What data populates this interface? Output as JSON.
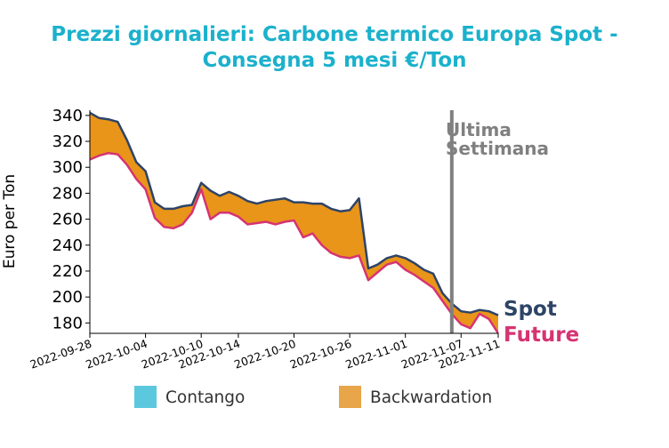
{
  "chart_data": {
    "type": "area",
    "title_line1": "Prezzi giornalieri: Carbone termico Europa Spot -",
    "title_line2": "Consegna 5 mesi €/Ton",
    "ylabel": "Euro per Ton",
    "xlabel": "",
    "ylim": [
      172,
      344
    ],
    "yticks": [
      180,
      200,
      220,
      240,
      260,
      280,
      300,
      320,
      340
    ],
    "xlim": [
      "2022-09-28",
      "2022-11-11"
    ],
    "xticks": [
      "2022-09-28",
      "2022-10-04",
      "2022-10-10",
      "2022-10-14",
      "2022-10-20",
      "2022-10-26",
      "2022-11-01",
      "2022-11-07",
      "2022-11-11"
    ],
    "grid": false,
    "vline": {
      "x": "2022-11-06",
      "label_line1": "Ultima",
      "label_line2": "Settimana",
      "color": "#808080"
    },
    "legend": [
      {
        "label": "Contango",
        "color": "#5bc8de"
      },
      {
        "label": "Backwardation",
        "color": "#e8a54a"
      }
    ],
    "series": [
      {
        "name": "Spot",
        "color": "#2e4467",
        "x": [
          "2022-09-28",
          "2022-09-29",
          "2022-09-30",
          "2022-10-01",
          "2022-10-02",
          "2022-10-03",
          "2022-10-04",
          "2022-10-05",
          "2022-10-06",
          "2022-10-07",
          "2022-10-08",
          "2022-10-09",
          "2022-10-10",
          "2022-10-11",
          "2022-10-12",
          "2022-10-13",
          "2022-10-14",
          "2022-10-15",
          "2022-10-16",
          "2022-10-17",
          "2022-10-18",
          "2022-10-19",
          "2022-10-20",
          "2022-10-21",
          "2022-10-22",
          "2022-10-23",
          "2022-10-24",
          "2022-10-25",
          "2022-10-26",
          "2022-10-27",
          "2022-10-28",
          "2022-10-29",
          "2022-10-30",
          "2022-10-31",
          "2022-11-01",
          "2022-11-02",
          "2022-11-03",
          "2022-11-04",
          "2022-11-05",
          "2022-11-06",
          "2022-11-07",
          "2022-11-08",
          "2022-11-09",
          "2022-11-10",
          "2022-11-11"
        ],
        "values": [
          342,
          338,
          337,
          335,
          321,
          304,
          297,
          273,
          268,
          268,
          270,
          271,
          288,
          282,
          278,
          281,
          278,
          274,
          272,
          274,
          275,
          276,
          273,
          273,
          272,
          272,
          268,
          266,
          267,
          276,
          222,
          225,
          230,
          232,
          230,
          226,
          221,
          218,
          203,
          195,
          189,
          188,
          190,
          189,
          186
        ]
      },
      {
        "name": "Future",
        "color": "#d63372",
        "x": [
          "2022-09-28",
          "2022-09-29",
          "2022-09-30",
          "2022-10-01",
          "2022-10-02",
          "2022-10-03",
          "2022-10-04",
          "2022-10-05",
          "2022-10-06",
          "2022-10-07",
          "2022-10-08",
          "2022-10-09",
          "2022-10-10",
          "2022-10-11",
          "2022-10-12",
          "2022-10-13",
          "2022-10-14",
          "2022-10-15",
          "2022-10-16",
          "2022-10-17",
          "2022-10-18",
          "2022-10-19",
          "2022-10-20",
          "2022-10-21",
          "2022-10-22",
          "2022-10-23",
          "2022-10-24",
          "2022-10-25",
          "2022-10-26",
          "2022-10-27",
          "2022-10-28",
          "2022-10-29",
          "2022-10-30",
          "2022-10-31",
          "2022-11-01",
          "2022-11-02",
          "2022-11-03",
          "2022-11-04",
          "2022-11-05",
          "2022-11-06",
          "2022-11-07",
          "2022-11-08",
          "2022-11-09",
          "2022-11-10",
          "2022-11-11"
        ],
        "values": [
          306,
          309,
          311,
          310,
          302,
          291,
          283,
          261,
          254,
          253,
          256,
          265,
          283,
          260,
          265,
          265,
          262,
          256,
          257,
          258,
          256,
          258,
          259,
          246,
          249,
          240,
          234,
          231,
          230,
          232,
          213,
          219,
          225,
          227,
          221,
          217,
          212,
          207,
          197,
          187,
          179,
          176,
          187,
          183,
          172
        ]
      }
    ]
  }
}
